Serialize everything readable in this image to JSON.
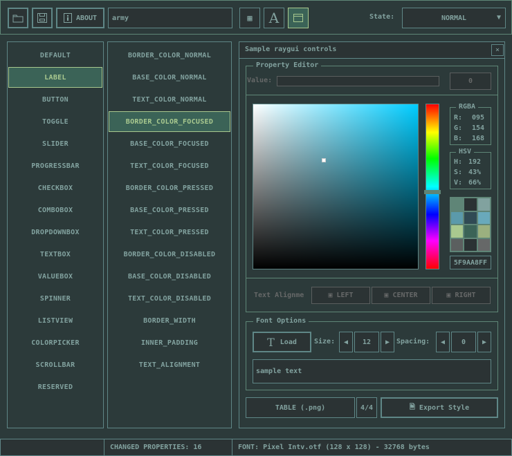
{
  "toolbar": {
    "search_value": "army",
    "about_label": "ABOUT",
    "state_label": "State:",
    "state_value": "NORMAL"
  },
  "controls": [
    "DEFAULT",
    "LABEL",
    "BUTTON",
    "TOGGLE",
    "SLIDER",
    "PROGRESSBAR",
    "CHECKBOX",
    "COMBOBOX",
    "DROPDOWNBOX",
    "TEXTBOX",
    "VALUEBOX",
    "SPINNER",
    "LISTVIEW",
    "COLORPICKER",
    "SCROLLBAR",
    "RESERVED"
  ],
  "selected_control": "LABEL",
  "properties": [
    "BORDER_COLOR_NORMAL",
    "BASE_COLOR_NORMAL",
    "TEXT_COLOR_NORMAL",
    "BORDER_COLOR_FOCUSED",
    "BASE_COLOR_FOCUSED",
    "TEXT_COLOR_FOCUSED",
    "BORDER_COLOR_PRESSED",
    "BASE_COLOR_PRESSED",
    "TEXT_COLOR_PRESSED",
    "BORDER_COLOR_DISABLED",
    "BASE_COLOR_DISABLED",
    "TEXT_COLOR_DISABLED",
    "BORDER_WIDTH",
    "INNER_PADDING",
    "TEXT_ALIGNMENT"
  ],
  "selected_property": "BORDER_COLOR_FOCUSED",
  "window": {
    "title": "Sample raygui controls",
    "close": "×"
  },
  "property_editor": {
    "title": "Property Editor",
    "value_label": "Value:",
    "value_input": "",
    "value_number": "0",
    "rgba": {
      "title": "RGBA",
      "r_label": "R:",
      "r": "095",
      "g_label": "G:",
      "g": "154",
      "b_label": "B:",
      "b": "168"
    },
    "hsv": {
      "title": "HSV",
      "h_label": "H:",
      "h": "192",
      "s_label": "S:",
      "s": "43%",
      "v_label": "V:",
      "v": "66%"
    },
    "hue": 192,
    "saturation": 0.43,
    "value": 0.66,
    "palette": [
      "#5f8577",
      "#2b3234",
      "#81a29f",
      "#5b9aab",
      "#304a54",
      "#69a9bb",
      "#a9c98f",
      "#3b6357",
      "#9bb07f",
      "#5b5f5f",
      "#2b3234",
      "#666868"
    ],
    "hex": "5F9AA8FF",
    "align_label": "Text Alignme",
    "align_left": "LEFT",
    "align_center": "CENTER",
    "align_right": "RIGHT"
  },
  "font_options": {
    "title": "Font Options",
    "load": "Load",
    "size_label": "Size:",
    "size": "12",
    "spacing_label": "Spacing:",
    "spacing": "0",
    "sample": "sample text"
  },
  "bottom": {
    "table": "TABLE (.png)",
    "page": "4/4",
    "export": "Export Style"
  },
  "statusbar": {
    "left": "",
    "changed": "CHANGED PROPERTIES: 16",
    "font": "FONT: Pixel Intv.otf (128 x 128) - 32768 bytes"
  },
  "colors": {
    "background": "#2c3a3a",
    "control": "#2b3334",
    "border": "#5f8787",
    "text": "#82a29f",
    "selected_bg": "#3b6357",
    "selected_border": "#a9c98f"
  }
}
